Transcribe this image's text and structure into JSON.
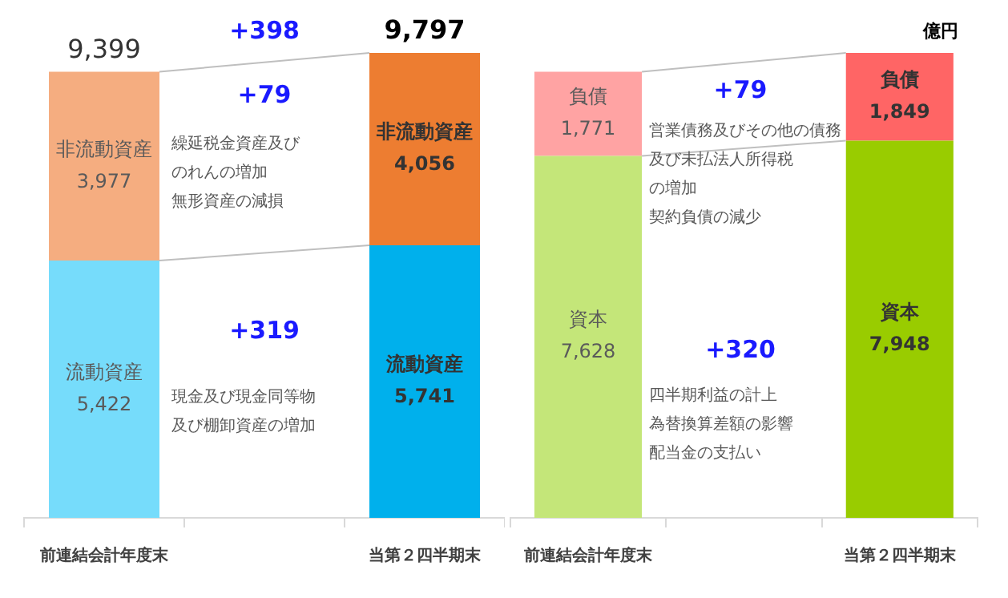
{
  "chart_data": [
    {
      "type": "bar",
      "stacked": true,
      "categories": [
        "前連結会計年度末",
        null,
        "当第２四半期末"
      ],
      "series": [
        {
          "name": "流動資産",
          "colors": [
            "#76dcfb",
            null,
            "#00b0ec"
          ],
          "values": [
            5422,
            null,
            5741
          ],
          "value_labels": [
            "5,422",
            null,
            "5,741"
          ]
        },
        {
          "name": "非流動資産",
          "colors": [
            "#f5ad80",
            null,
            "#ed7d31"
          ],
          "values": [
            3977,
            null,
            4056
          ],
          "value_labels": [
            "3,977",
            null,
            "4,056"
          ]
        }
      ],
      "totals": [
        "9,399",
        null,
        "9,797"
      ],
      "tick_labels": "x",
      "grid": false,
      "legend": false,
      "annotations": [
        "+398",
        "+79",
        "繰延税金資産及び",
        "のれんの増加",
        "無形資産の減損",
        "+319",
        "現金及び現金同等物",
        "及び棚卸資産の増加"
      ]
    },
    {
      "type": "bar",
      "stacked": true,
      "categories": [
        "前連結会計年度末",
        null,
        "当第２四半期末"
      ],
      "series": [
        {
          "name": "資本",
          "colors": [
            "#c4e679",
            null,
            "#99cc00"
          ],
          "values": [
            7628,
            null,
            7948
          ],
          "value_labels": [
            "7,628",
            null,
            "7,948"
          ]
        },
        {
          "name": "負債",
          "colors": [
            "#ffa3a3",
            null,
            "#ff6565"
          ],
          "values": [
            1771,
            null,
            1849
          ],
          "value_labels": [
            "1,771",
            null,
            "1,849"
          ]
        }
      ],
      "tick_labels": "x",
      "grid": false,
      "legend": false,
      "annotations": [
        "億円",
        "+79",
        "営業債務及びその他の債務",
        "及び未払法人所得税",
        "の増加",
        "契約負債の減少",
        "+320",
        "四半期利益の計上",
        "為替換算差額の影響",
        "配当金の支払い"
      ]
    }
  ]
}
